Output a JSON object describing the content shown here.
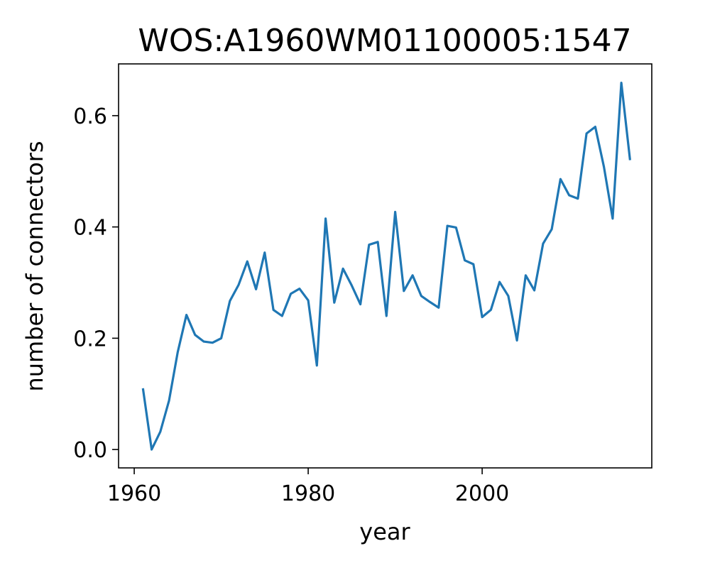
{
  "chart_data": {
    "type": "line",
    "title": "WOS:A1960WM01100005:1547",
    "xlabel": "year",
    "ylabel": "number of connectors",
    "xlim": [
      1958.2,
      2019.5
    ],
    "ylim": [
      -0.033,
      0.693
    ],
    "xticks": [
      1960,
      1980,
      2000
    ],
    "xtick_labels": [
      "1960",
      "1980",
      "2000"
    ],
    "yticks": [
      0.0,
      0.2,
      0.4,
      0.6
    ],
    "ytick_labels": [
      "0.0",
      "0.2",
      "0.4",
      "0.6"
    ],
    "grid": false,
    "series": [
      {
        "color": "#1f77b4",
        "x": [
          1961,
          1962,
          1963,
          1964,
          1965,
          1966,
          1967,
          1968,
          1969,
          1970,
          1971,
          1972,
          1973,
          1974,
          1975,
          1976,
          1977,
          1978,
          1979,
          1980,
          1981,
          1982,
          1983,
          1984,
          1985,
          1986,
          1987,
          1988,
          1989,
          1990,
          1991,
          1992,
          1993,
          1994,
          1995,
          1996,
          1997,
          1998,
          1999,
          2000,
          2001,
          2002,
          2003,
          2004,
          2005,
          2006,
          2007,
          2008,
          2009,
          2010,
          2011,
          2012,
          2013,
          2014,
          2015,
          2016,
          2017
        ],
        "y": [
          0.11,
          0.0,
          0.032,
          0.088,
          0.175,
          0.242,
          0.206,
          0.194,
          0.192,
          0.2,
          0.267,
          0.296,
          0.338,
          0.288,
          0.354,
          0.251,
          0.24,
          0.28,
          0.289,
          0.268,
          0.151,
          0.415,
          0.264,
          0.325,
          0.295,
          0.261,
          0.368,
          0.373,
          0.24,
          0.427,
          0.285,
          0.313,
          0.276,
          0.265,
          0.255,
          0.402,
          0.399,
          0.34,
          0.333,
          0.238,
          0.251,
          0.301,
          0.276,
          0.196,
          0.313,
          0.286,
          0.37,
          0.396,
          0.486,
          0.457,
          0.451,
          0.568,
          0.58,
          0.508,
          0.415,
          0.659,
          0.52
        ]
      }
    ]
  }
}
